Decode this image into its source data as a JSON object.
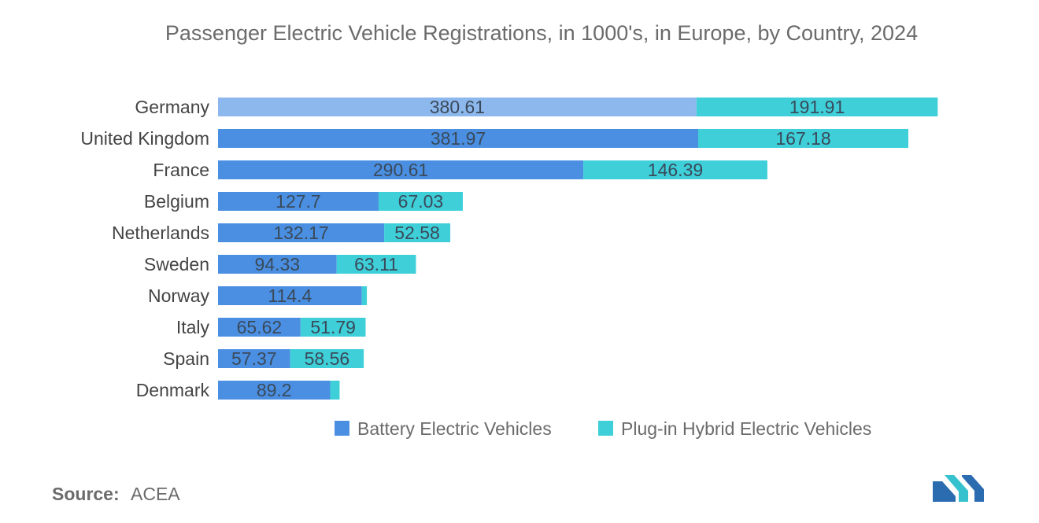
{
  "chart_data": {
    "type": "bar",
    "orientation": "horizontal",
    "stacked": true,
    "title": "Passenger Electric Vehicle Registrations, in 1000's, in Europe, by Country, 2024",
    "categories": [
      "Germany",
      "United Kingdom",
      "France",
      "Belgium",
      "Netherlands",
      "Sweden",
      "Norway",
      "Italy",
      "Spain",
      "Denmark"
    ],
    "series": [
      {
        "name": "Battery Electric Vehicles",
        "color": "#4a8fe2",
        "values": [
          380.61,
          381.97,
          290.61,
          127.7,
          132.17,
          94.33,
          114.4,
          65.62,
          57.37,
          89.2
        ],
        "labels": [
          "380.61",
          "381.97",
          "290.61",
          "127.7",
          "132.17",
          "94.33",
          "114.4",
          "65.62",
          "57.37",
          "89.2"
        ]
      },
      {
        "name": "Plug-in Hybrid Electric Vehicles",
        "color": "#3ecfd9",
        "values": [
          191.91,
          167.18,
          146.39,
          67.03,
          52.58,
          63.11,
          4.0,
          51.79,
          58.56,
          7.5
        ],
        "labels": [
          "191.91",
          "167.18",
          "146.39",
          "67.03",
          "52.58",
          "63.11",
          "",
          "51.79",
          "58.56",
          ""
        ]
      }
    ],
    "highlight": {
      "category": "Germany",
      "color": "#8db8ee"
    },
    "xlim": [
      0,
      600
    ],
    "legend_position": "bottom",
    "grid": false
  },
  "source": {
    "label": "Source:",
    "value": "ACEA"
  },
  "logo": {
    "name": "mordor-intelligence-logo",
    "colors": [
      "#2b6cb0",
      "#36c1cf"
    ]
  }
}
